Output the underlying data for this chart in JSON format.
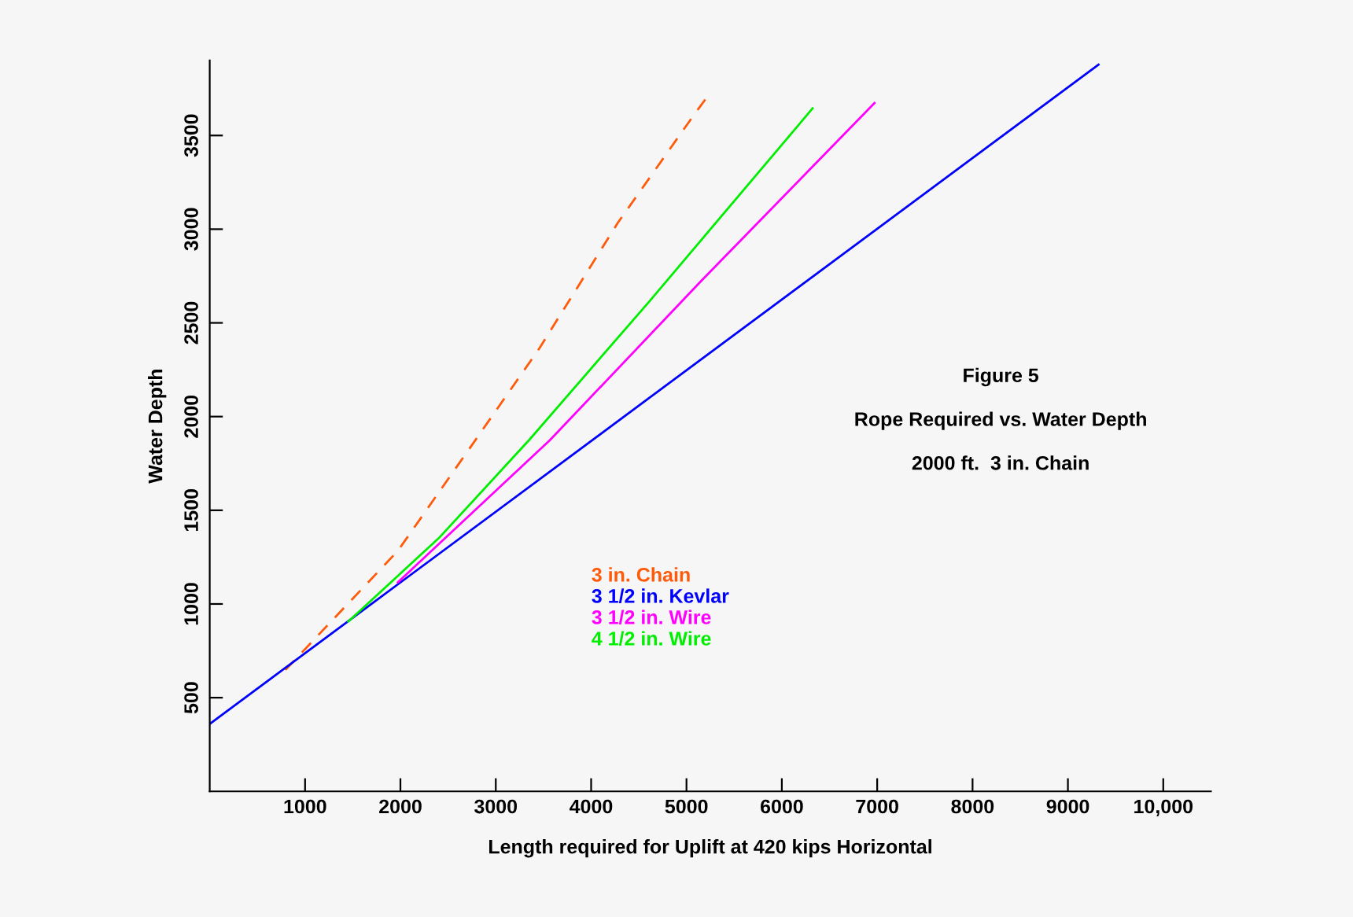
{
  "chart_data": {
    "type": "line",
    "xlabel": "Length required for Uplift at 420 kips Horizontal",
    "ylabel": "Water Depth",
    "annotations": [
      "Figure 5",
      "Rope Required vs. Water Depth",
      "2000 ft.  3 in. Chain"
    ],
    "xlim": [
      0,
      10500
    ],
    "ylim": [
      0,
      3900
    ],
    "xticks": [
      1000,
      2000,
      3000,
      4000,
      5000,
      6000,
      7000,
      8000,
      9000,
      {
        "value": 10000,
        "label": "10,000"
      }
    ],
    "yticks": [
      500,
      1000,
      1500,
      2000,
      2500,
      3000,
      3500
    ],
    "grid": false,
    "legend": "lower center",
    "series": [
      {
        "name": "3 in. Chain",
        "color": "#ff5a0a",
        "line_style": "dashed",
        "x": [
          794,
          1974,
          2743,
          3457,
          4280,
          5077,
          5226
        ],
        "values": [
          648,
          1284,
          1843,
          2364,
          3034,
          3609,
          3712
        ]
      },
      {
        "name": "3 1/2 in. Kevlar",
        "color": "#0000ff",
        "line_style": "solid",
        "x": [
          0,
          9321
        ],
        "values": [
          360,
          3878
        ]
      },
      {
        "name": "3 1/2 in. Wire",
        "color": "#ff00ff",
        "line_style": "solid",
        "x": [
          1974,
          3567,
          5160,
          6972
        ],
        "values": [
          1116,
          1874,
          2727,
          3673
        ]
      },
      {
        "name": "4 1/2 in. Wire",
        "color": "#00ee00",
        "line_style": "solid",
        "x": [
          1453,
          2400,
          3348,
          4610,
          6323
        ],
        "values": [
          906,
          1350,
          1874,
          2614,
          3645
        ]
      }
    ]
  }
}
